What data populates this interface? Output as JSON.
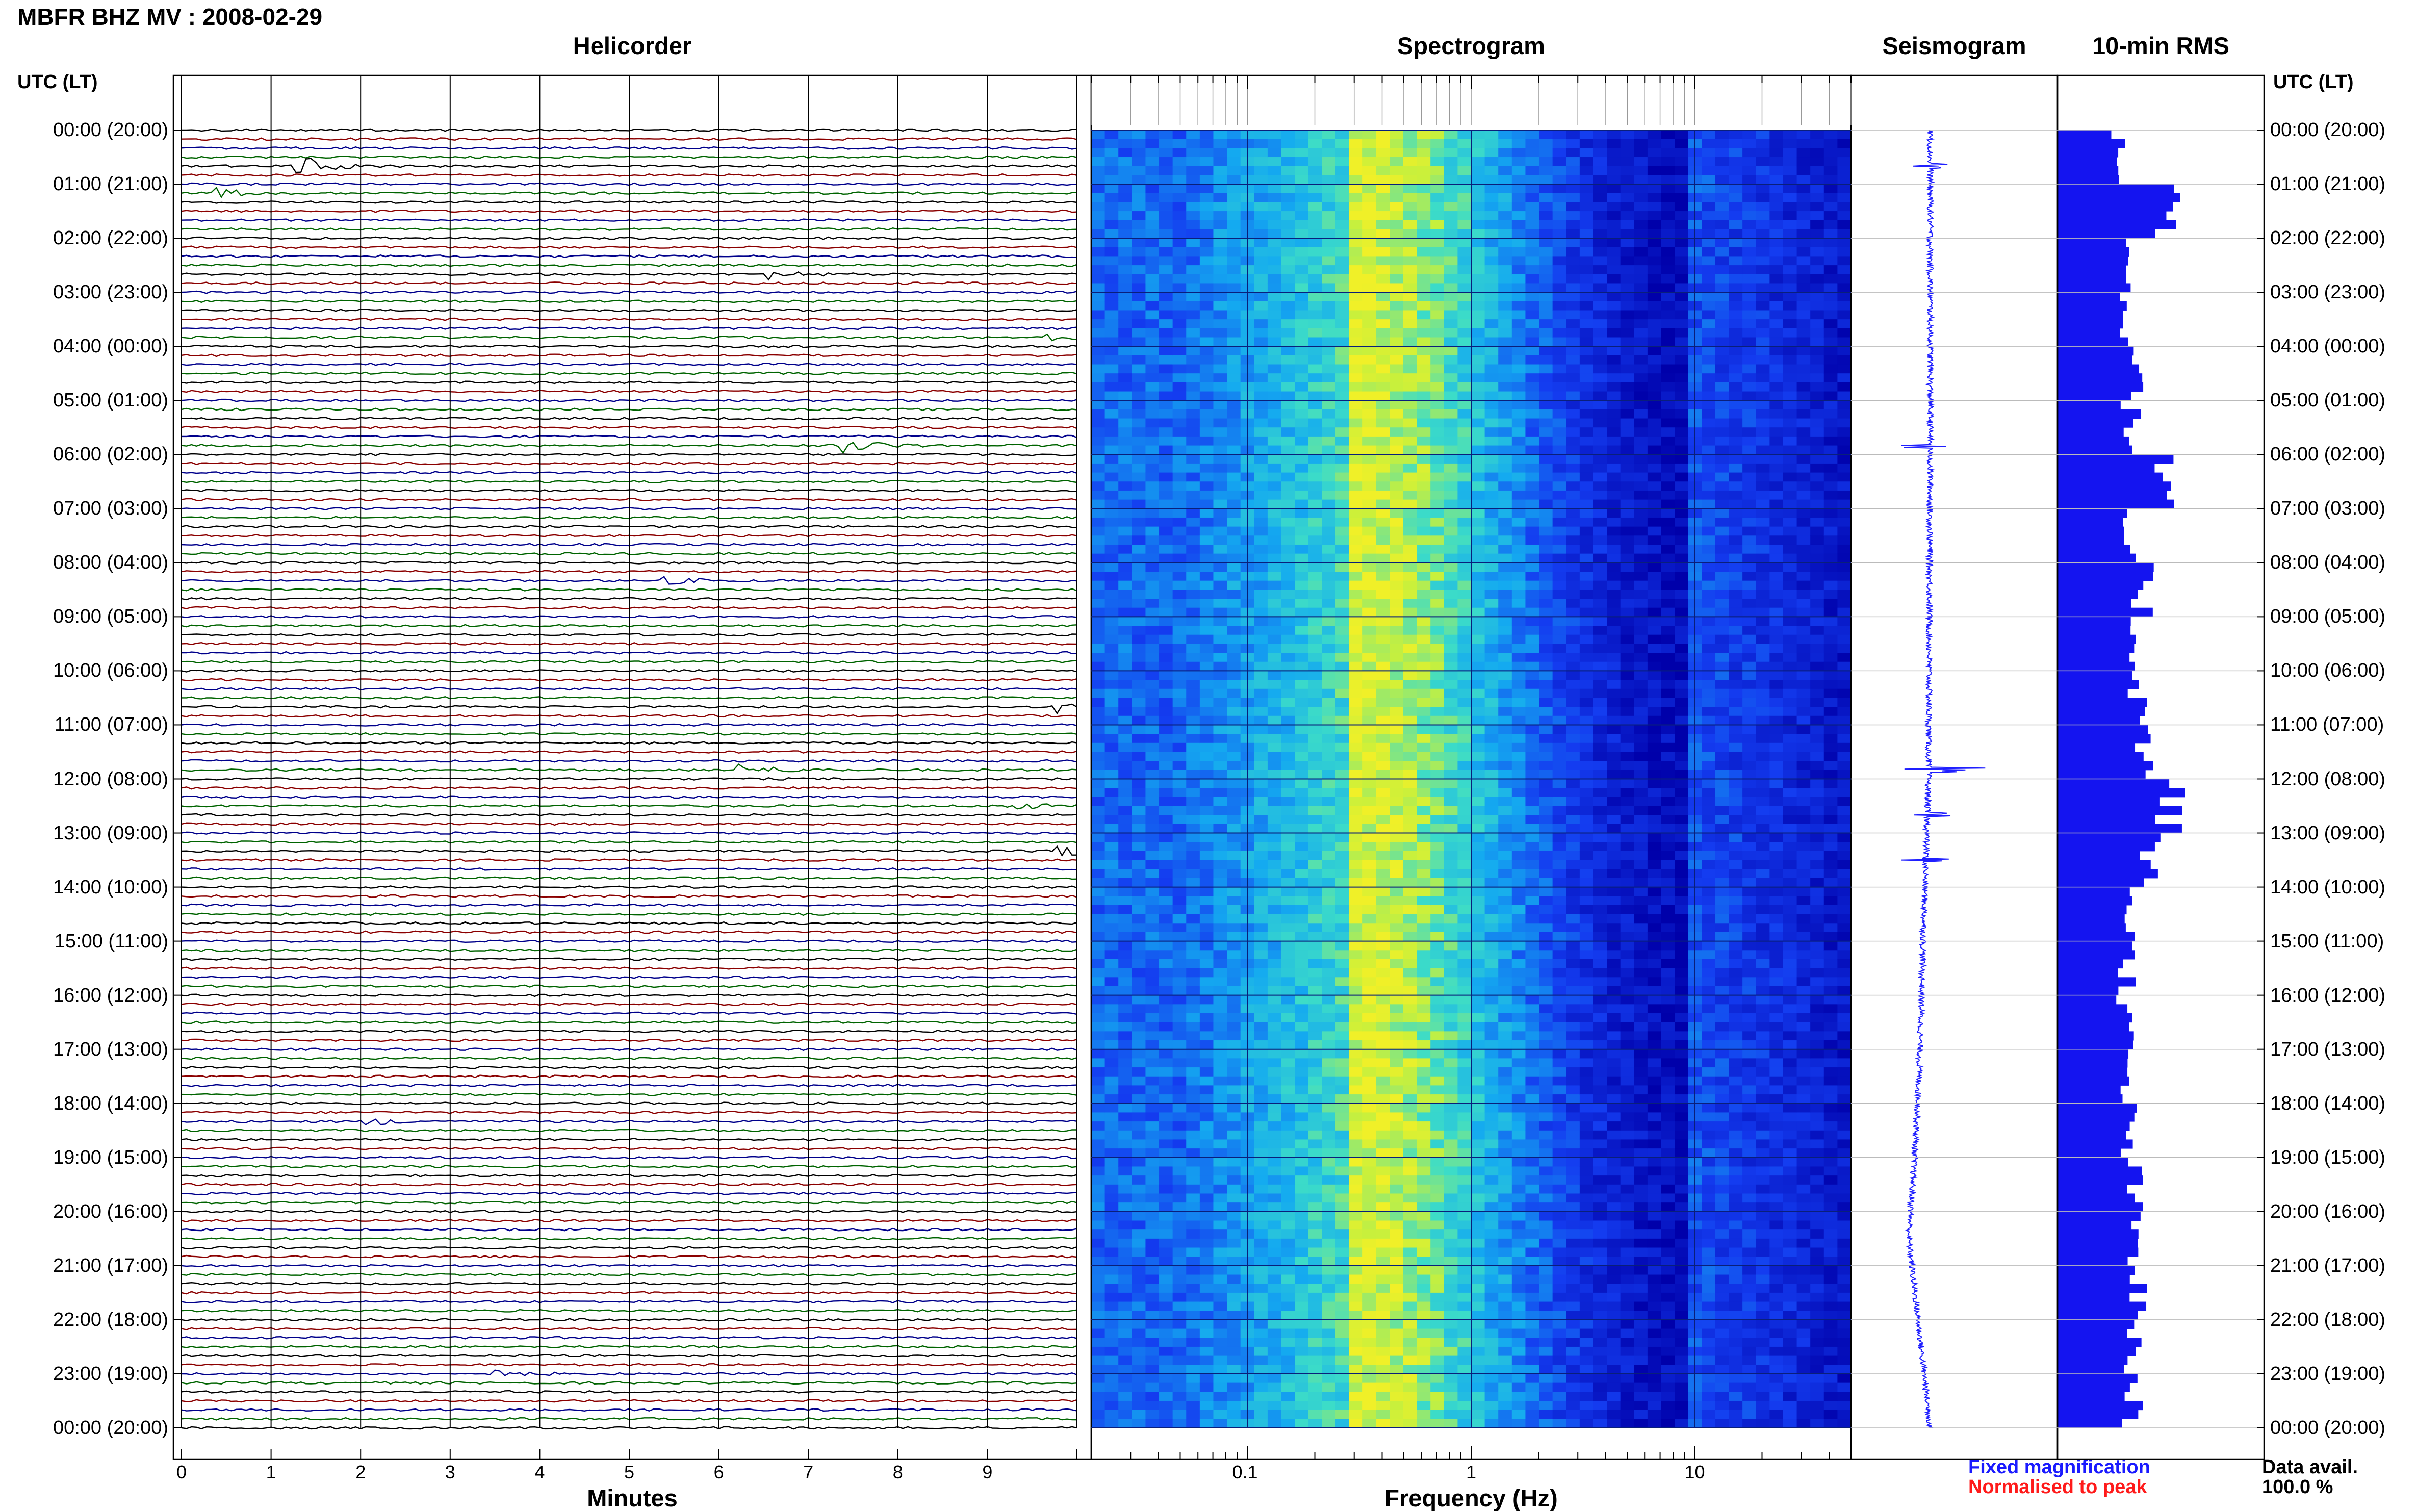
{
  "header": {
    "title": "MBFR BHZ MV : 2008-02-29"
  },
  "panels": {
    "helicorder": "Helicorder",
    "spectrogram": "Spectrogram",
    "seismogram": "Seismogram",
    "rms": "10-min RMS"
  },
  "axes": {
    "utc_header": "UTC (LT)",
    "time_labels": [
      "00:00 (20:00)",
      "01:00 (21:00)",
      "02:00 (22:00)",
      "03:00 (23:00)",
      "04:00 (00:00)",
      "05:00 (01:00)",
      "06:00 (02:00)",
      "07:00 (03:00)",
      "08:00 (04:00)",
      "09:00 (05:00)",
      "10:00 (06:00)",
      "11:00 (07:00)",
      "12:00 (08:00)",
      "13:00 (09:00)",
      "14:00 (10:00)",
      "15:00 (11:00)",
      "16:00 (12:00)",
      "17:00 (13:00)",
      "18:00 (14:00)",
      "19:00 (15:00)",
      "20:00 (16:00)",
      "21:00 (17:00)",
      "22:00 (18:00)",
      "23:00 (19:00)",
      "00:00 (20:00)"
    ],
    "minutes_label": "Minutes",
    "minute_ticks": [
      "0",
      "1",
      "2",
      "3",
      "4",
      "5",
      "6",
      "7",
      "8",
      "9"
    ],
    "frequency_label": "Frequency (Hz)",
    "frequency_ticks": [
      "0.1",
      "1",
      "10"
    ]
  },
  "legend": {
    "fixed": "Fixed magnification",
    "normalised": "Normalised to peak",
    "fixed_color": "#1a1aff",
    "normalised_color": "#ff1a1a"
  },
  "availability": {
    "label": "Data avail.",
    "value": "100.0 %"
  },
  "colors": {
    "helicorder_traces": [
      "#000000",
      "#8b0000",
      "#00008b",
      "#006400"
    ],
    "seismogram": "#1f1fff",
    "rms_bars": "#1414f0"
  },
  "chart_data": [
    {
      "type": "line",
      "panel": "Helicorder",
      "xlabel": "Minutes",
      "xlim": [
        0,
        10
      ],
      "y_span_hours": [
        0,
        24
      ],
      "lines_per_hour": 6,
      "trace_colors_cycle": [
        "black",
        "darkred",
        "darkblue",
        "darkgreen"
      ],
      "events": [
        {
          "hour": 0.67,
          "minute": 1.3,
          "amp": 1.0
        },
        {
          "hour": 1.17,
          "minute": 0.4,
          "amp": 0.4
        },
        {
          "hour": 2.67,
          "minute": 6.6,
          "amp": 0.4
        },
        {
          "hour": 3.83,
          "minute": 9.7,
          "amp": 0.4
        },
        {
          "hour": 5.83,
          "minute": 7.4,
          "amp": 0.7
        },
        {
          "hour": 8.33,
          "minute": 5.4,
          "amp": 0.3
        },
        {
          "hour": 10.67,
          "minute": 9.8,
          "amp": 0.5
        },
        {
          "hour": 11.83,
          "minute": 6.2,
          "amp": 0.6
        },
        {
          "hour": 12.5,
          "minute": 9.2,
          "amp": 0.4
        },
        {
          "hour": 13.33,
          "minute": 9.8,
          "amp": 0.6
        },
        {
          "hour": 18.33,
          "minute": 2.1,
          "amp": 0.3
        },
        {
          "hour": 23.0,
          "minute": 3.5,
          "amp": 0.3
        }
      ]
    },
    {
      "type": "heatmap",
      "panel": "Spectrogram",
      "xlabel": "Frequency (Hz)",
      "xscale": "log",
      "xlim": [
        0.02,
        50
      ],
      "x_ticks": [
        0.1,
        1,
        10
      ],
      "y_span_hours": [
        0,
        24
      ],
      "peak_frequency_hz": 0.3,
      "colormap": "blue-cyan-yellow"
    },
    {
      "type": "line",
      "panel": "Seismogram",
      "y_span_hours": [
        0,
        24
      ],
      "drift": [
        {
          "hour": 0,
          "offset": 0.35
        },
        {
          "hour": 6,
          "offset": 0.35
        },
        {
          "hour": 12,
          "offset": 0.32
        },
        {
          "hour": 18,
          "offset": 0.15
        },
        {
          "hour": 20.5,
          "offset": 0.0
        },
        {
          "hour": 24,
          "offset": 0.35
        }
      ],
      "spikes": [
        {
          "hour": 0.67,
          "amp": 1.0
        },
        {
          "hour": 5.83,
          "amp": 0.9
        },
        {
          "hour": 11.83,
          "amp": 1.2
        },
        {
          "hour": 12.67,
          "amp": 0.6
        },
        {
          "hour": 13.5,
          "amp": 0.5
        }
      ]
    },
    {
      "type": "bar",
      "panel": "10-min RMS",
      "orientation": "horizontal",
      "intervals": 144,
      "hourly_rms_relative": [
        0.55,
        1.0,
        0.6,
        0.62,
        0.72,
        0.65,
        0.9,
        0.6,
        0.75,
        0.7,
        0.72,
        0.78,
        1.0,
        0.8,
        0.65,
        0.62,
        0.6,
        0.6,
        0.62,
        0.66,
        0.68,
        0.7,
        0.65,
        0.66
      ]
    }
  ]
}
